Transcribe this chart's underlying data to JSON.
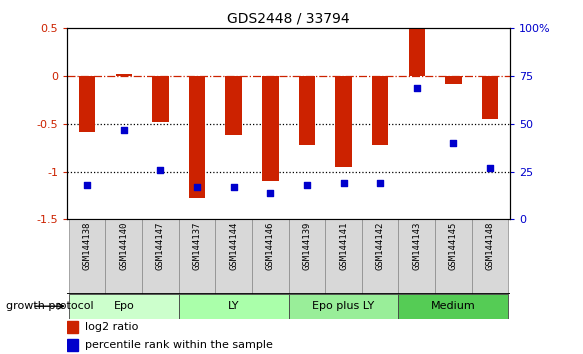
{
  "title": "GDS2448 / 33794",
  "samples": [
    "GSM144138",
    "GSM144140",
    "GSM144147",
    "GSM144137",
    "GSM144144",
    "GSM144146",
    "GSM144139",
    "GSM144141",
    "GSM144142",
    "GSM144143",
    "GSM144145",
    "GSM144148"
  ],
  "log2_ratio": [
    -0.58,
    0.02,
    -0.48,
    -1.28,
    -0.62,
    -1.1,
    -0.72,
    -0.95,
    -0.72,
    0.5,
    -0.08,
    -0.45
  ],
  "percentile_rank": [
    18,
    47,
    26,
    17,
    17,
    14,
    18,
    19,
    19,
    69,
    40,
    27
  ],
  "groups": [
    {
      "label": "Epo",
      "start": 0,
      "end": 3,
      "color": "#ccffcc"
    },
    {
      "label": "LY",
      "start": 3,
      "end": 6,
      "color": "#aaffaa"
    },
    {
      "label": "Epo plus LY",
      "start": 6,
      "end": 9,
      "color": "#99ee99"
    },
    {
      "label": "Medium",
      "start": 9,
      "end": 12,
      "color": "#55cc55"
    }
  ],
  "bar_color": "#cc2200",
  "dot_color": "#0000cc",
  "ylim_left": [
    -1.5,
    0.5
  ],
  "ylim_right": [
    0,
    100
  ],
  "yticks_left": [
    -1.5,
    -1.0,
    -0.5,
    0.0,
    0.5
  ],
  "ytick_labels_left": [
    "-1.5",
    "-1",
    "-0.5",
    "0",
    "0.5"
  ],
  "yticks_right": [
    0,
    25,
    50,
    75,
    100
  ],
  "ytick_labels_right": [
    "0",
    "25",
    "50",
    "75",
    "100%"
  ],
  "hline_zero_color": "#cc2200",
  "hline_dotted_color": "#000000",
  "group_header": "growth protocol",
  "bar_width": 0.45
}
